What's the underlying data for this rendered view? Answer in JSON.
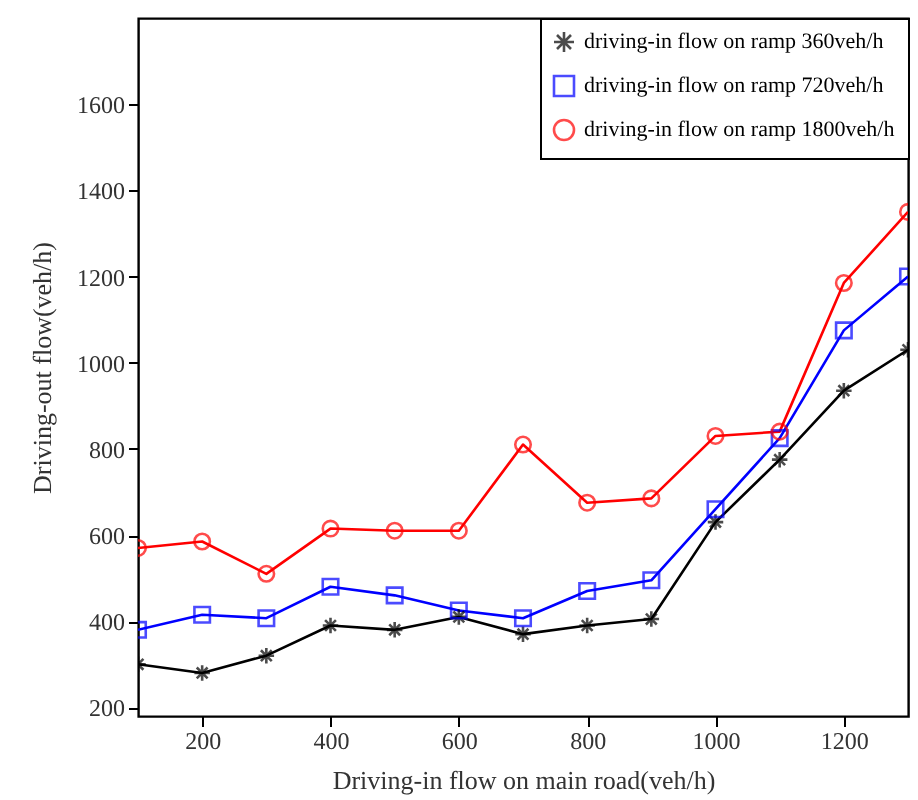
{
  "chart_data": {
    "type": "line",
    "xlabel": "Driving-in flow on main road(veh/h)",
    "ylabel": "Driving-out flow(veh/h)",
    "x": [
      100,
      200,
      300,
      400,
      500,
      600,
      700,
      800,
      900,
      1000,
      1100,
      1200,
      1300
    ],
    "series": [
      {
        "name": "driving-in flow on ramp 360veh/h",
        "color": "#000000",
        "marker": "cross",
        "values": [
          300,
          280,
          320,
          390,
          380,
          410,
          370,
          390,
          405,
          630,
          775,
          935,
          1030
        ]
      },
      {
        "name": "driving-in flow on ramp 720veh/h",
        "color": "#0000ff",
        "marker": "square",
        "values": [
          380,
          415,
          407,
          480,
          460,
          425,
          407,
          470,
          495,
          660,
          825,
          1075,
          1200
        ]
      },
      {
        "name": "driving-in flow on ramp 1800veh/h",
        "color": "#ff0000",
        "marker": "circle",
        "values": [
          570,
          585,
          510,
          615,
          610,
          610,
          810,
          675,
          685,
          830,
          840,
          1185,
          1350
        ]
      }
    ],
    "xlim": [
      100,
      1300
    ],
    "ylim": [
      180,
      1800
    ],
    "xticks": [
      200,
      400,
      600,
      800,
      1000,
      1200
    ],
    "yticks": [
      200,
      400,
      600,
      800,
      1000,
      1200,
      1400,
      1600
    ],
    "legend": "top right"
  }
}
